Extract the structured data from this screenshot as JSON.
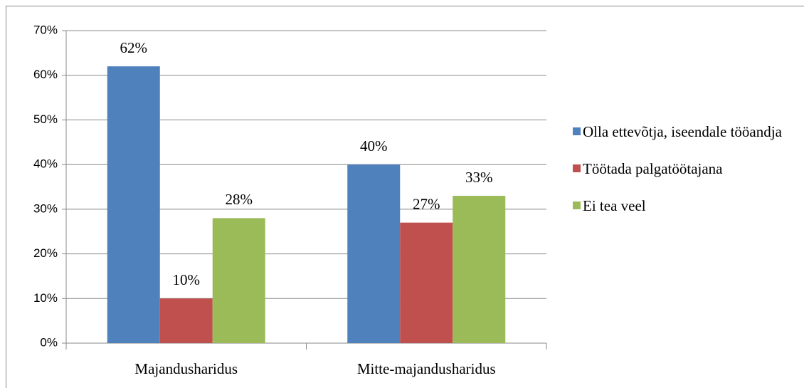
{
  "chart_data": {
    "type": "bar",
    "categories": [
      "Majandusharidus",
      "Mitte-majandusharidus"
    ],
    "series": [
      {
        "name": "Olla ettevõtja, iseendale tööandja",
        "color": "#4f81bd",
        "values": [
          62,
          40
        ],
        "value_labels": [
          "62%",
          "40%"
        ]
      },
      {
        "name": "Töötada palgatöötajana",
        "color": "#c0504d",
        "values": [
          10,
          27
        ],
        "value_labels": [
          "10%",
          "27%"
        ]
      },
      {
        "name": "Ei tea veel",
        "color": "#9bbb59",
        "values": [
          28,
          33
        ],
        "value_labels": [
          "28%",
          "33%"
        ]
      }
    ],
    "ylim": [
      0,
      70
    ],
    "yticks": [
      {
        "value": 0,
        "label": "0%"
      },
      {
        "value": 10,
        "label": "10%"
      },
      {
        "value": 20,
        "label": "20%"
      },
      {
        "value": 30,
        "label": "30%"
      },
      {
        "value": 40,
        "label": "40%"
      },
      {
        "value": 50,
        "label": "50%"
      },
      {
        "value": 60,
        "label": "60%"
      },
      {
        "value": 70,
        "label": "70%"
      }
    ],
    "grid": true,
    "legend": "right"
  }
}
